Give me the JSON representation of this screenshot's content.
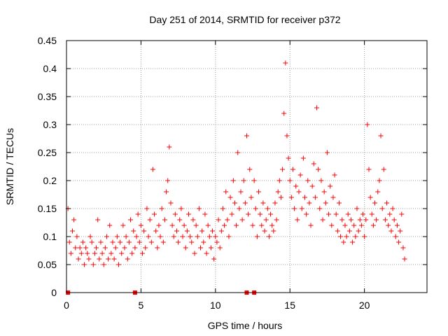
{
  "chart_data": {
    "type": "scatter",
    "title": "Day 251 of 2014, SRMTID for receiver p372",
    "xlabel": "GPS time / hours",
    "ylabel": "SRMTID / TECUs",
    "xlim": [
      0,
      24.2
    ],
    "ylim": [
      0,
      0.45
    ],
    "xticks": [
      0,
      5,
      10,
      15,
      20
    ],
    "yticks": [
      0,
      0.05,
      0.1,
      0.15,
      0.2,
      0.25,
      0.3,
      0.35,
      0.4,
      0.45
    ],
    "x_tick_labels": [
      "0",
      "5",
      "10",
      "15",
      "20"
    ],
    "y_tick_labels": [
      "0",
      "0.05",
      "0.1",
      "0.15",
      "0.2",
      "0.25",
      "0.3",
      "0.35",
      "0.4",
      "0.45"
    ],
    "grid": true,
    "marker": "+",
    "color": "#ff0000",
    "series": [
      {
        "name": "SRMTID",
        "x": [
          0.1,
          0.2,
          0.3,
          0.4,
          0.5,
          0.6,
          0.7,
          0.8,
          0.9,
          1.0,
          1.1,
          1.2,
          1.3,
          1.4,
          1.5,
          1.6,
          1.7,
          1.8,
          1.9,
          2.0,
          2.1,
          2.2,
          2.3,
          2.4,
          2.5,
          2.6,
          2.7,
          2.8,
          2.9,
          3.0,
          3.1,
          3.2,
          3.3,
          3.4,
          3.5,
          3.6,
          3.7,
          3.8,
          3.9,
          4.0,
          4.1,
          4.2,
          4.3,
          4.4,
          4.5,
          4.6,
          4.7,
          4.8,
          4.9,
          5.0,
          5.1,
          5.2,
          5.3,
          5.4,
          5.5,
          5.6,
          5.7,
          5.8,
          5.9,
          6.0,
          6.1,
          6.2,
          6.3,
          6.4,
          6.5,
          6.6,
          6.7,
          6.8,
          6.9,
          7.0,
          7.1,
          7.2,
          7.3,
          7.4,
          7.5,
          7.6,
          7.7,
          7.8,
          7.9,
          8.0,
          8.1,
          8.2,
          8.3,
          8.4,
          8.5,
          8.6,
          8.7,
          8.8,
          8.9,
          9.0,
          9.1,
          9.2,
          9.3,
          9.4,
          9.5,
          9.6,
          9.7,
          9.8,
          9.9,
          10.0,
          10.1,
          10.2,
          10.3,
          10.4,
          10.5,
          10.6,
          10.7,
          10.8,
          10.9,
          11.0,
          11.1,
          11.2,
          11.3,
          11.4,
          11.5,
          11.6,
          11.7,
          11.8,
          11.9,
          12.0,
          12.1,
          12.2,
          12.3,
          12.4,
          12.5,
          12.6,
          12.7,
          12.8,
          12.9,
          13.0,
          13.1,
          13.2,
          13.3,
          13.4,
          13.5,
          13.6,
          13.7,
          13.8,
          13.9,
          14.0,
          14.1,
          14.2,
          14.3,
          14.4,
          14.5,
          14.6,
          14.7,
          14.8,
          14.9,
          15.0,
          15.1,
          15.2,
          15.3,
          15.4,
          15.5,
          15.6,
          15.7,
          15.8,
          15.9,
          16.0,
          16.1,
          16.2,
          16.3,
          16.4,
          16.5,
          16.6,
          16.7,
          16.8,
          16.9,
          17.0,
          17.1,
          17.2,
          17.3,
          17.4,
          17.5,
          17.6,
          17.7,
          17.8,
          17.9,
          18.0,
          18.1,
          18.2,
          18.3,
          18.4,
          18.5,
          18.6,
          18.7,
          18.8,
          18.9,
          19.0,
          19.1,
          19.2,
          19.3,
          19.4,
          19.5,
          19.6,
          19.7,
          19.8,
          19.9,
          20.0,
          20.1,
          20.2,
          20.3,
          20.4,
          20.5,
          20.6,
          20.7,
          20.8,
          20.9,
          21.0,
          21.1,
          21.2,
          21.3,
          21.4,
          21.5,
          21.6,
          21.7,
          21.8,
          21.9,
          22.0,
          22.1,
          22.2,
          22.3,
          22.4,
          22.5,
          22.6,
          22.7
        ],
        "y": [
          0.15,
          0.09,
          0.07,
          0.11,
          0.13,
          0.08,
          0.1,
          0.06,
          0.08,
          0.07,
          0.09,
          0.05,
          0.08,
          0.07,
          0.06,
          0.1,
          0.09,
          0.05,
          0.07,
          0.08,
          0.13,
          0.06,
          0.09,
          0.07,
          0.05,
          0.08,
          0.1,
          0.06,
          0.12,
          0.07,
          0.09,
          0.06,
          0.08,
          0.1,
          0.05,
          0.09,
          0.07,
          0.12,
          0.08,
          0.1,
          0.06,
          0.09,
          0.13,
          0.07,
          0.11,
          0.08,
          0.1,
          0.14,
          0.09,
          0.12,
          0.07,
          0.11,
          0.08,
          0.15,
          0.1,
          0.13,
          0.09,
          0.22,
          0.14,
          0.11,
          0.08,
          0.12,
          0.1,
          0.15,
          0.09,
          0.13,
          0.18,
          0.2,
          0.26,
          0.16,
          0.12,
          0.1,
          0.14,
          0.11,
          0.09,
          0.13,
          0.15,
          0.1,
          0.12,
          0.08,
          0.11,
          0.14,
          0.1,
          0.09,
          0.13,
          0.07,
          0.12,
          0.1,
          0.15,
          0.08,
          0.11,
          0.09,
          0.14,
          0.07,
          0.12,
          0.1,
          0.08,
          0.11,
          0.06,
          0.1,
          0.09,
          0.13,
          0.08,
          0.11,
          0.15,
          0.12,
          0.18,
          0.13,
          0.1,
          0.17,
          0.14,
          0.2,
          0.16,
          0.12,
          0.25,
          0.15,
          0.18,
          0.13,
          0.2,
          0.16,
          0.28,
          0.14,
          0.22,
          0.17,
          0.12,
          0.2,
          0.15,
          0.1,
          0.18,
          0.14,
          0.12,
          0.16,
          0.11,
          0.13,
          0.15,
          0.1,
          0.14,
          0.12,
          0.11,
          0.16,
          0.13,
          0.18,
          0.2,
          0.17,
          0.22,
          0.32,
          0.41,
          0.28,
          0.24,
          0.2,
          0.17,
          0.22,
          0.15,
          0.19,
          0.13,
          0.18,
          0.21,
          0.15,
          0.24,
          0.17,
          0.14,
          0.2,
          0.16,
          0.12,
          0.19,
          0.23,
          0.17,
          0.33,
          0.22,
          0.15,
          0.2,
          0.13,
          0.18,
          0.16,
          0.25,
          0.14,
          0.19,
          0.12,
          0.17,
          0.21,
          0.14,
          0.11,
          0.16,
          0.1,
          0.13,
          0.09,
          0.12,
          0.1,
          0.14,
          0.11,
          0.13,
          0.09,
          0.12,
          0.1,
          0.15,
          0.11,
          0.13,
          0.12,
          0.14,
          0.1,
          0.13,
          0.3,
          0.22,
          0.17,
          0.14,
          0.12,
          0.16,
          0.13,
          0.18,
          0.2,
          0.28,
          0.15,
          0.22,
          0.13,
          0.16,
          0.12,
          0.14,
          0.11,
          0.15,
          0.13,
          0.1,
          0.12,
          0.09,
          0.11,
          0.14,
          0.08,
          0.06
        ]
      }
    ],
    "zero_markers_x": [
      0.1,
      4.6,
      12.1,
      12.6
    ]
  }
}
